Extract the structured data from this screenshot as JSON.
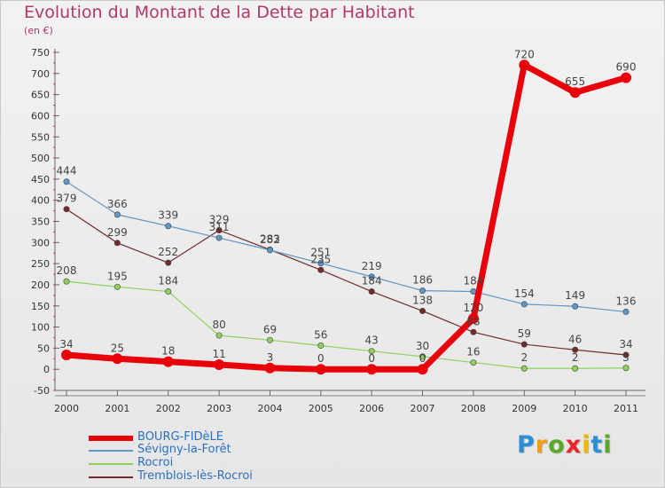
{
  "title": "Evolution du Montant de la Dette par Habitant",
  "subtitle": "(en €)",
  "logo": {
    "letters": [
      "P",
      "r",
      "o",
      "x",
      "i",
      "t",
      "i"
    ],
    "colors": [
      "#2a8fd4",
      "#f39c12",
      "#5aa82a",
      "#e8262c",
      "#f3b500",
      "#2a8fd4",
      "#5aa82a"
    ]
  },
  "chart_data": {
    "type": "line",
    "categories": [
      "2000",
      "2001",
      "2002",
      "2003",
      "2004",
      "2005",
      "2006",
      "2007",
      "2008",
      "2009",
      "2010",
      "2011"
    ],
    "ylim": [
      -50,
      750
    ],
    "yticks": [
      -50,
      0,
      50,
      100,
      150,
      200,
      250,
      300,
      350,
      400,
      450,
      500,
      550,
      600,
      650,
      700,
      750
    ],
    "grid": false,
    "legend_position": "bottom-left",
    "series": [
      {
        "name": "BOURG-FIDèLE",
        "color": "#e8000b",
        "values": [
          34,
          25,
          18,
          11,
          3,
          0,
          0,
          0,
          120,
          720,
          655,
          690
        ],
        "labels": [
          "34",
          "25",
          "18",
          "11",
          "3",
          "0",
          "0",
          "0",
          "120",
          "720",
          "655",
          "690"
        ]
      },
      {
        "name": "Sévigny-la-Forêt",
        "color": "#5f97c8",
        "values": [
          444,
          366,
          339,
          311,
          282,
          251,
          219,
          186,
          184,
          154,
          149,
          136
        ],
        "labels": [
          "444",
          "366",
          "339",
          "311",
          "282",
          "251",
          "219",
          "186",
          "184",
          "154",
          "149",
          "136"
        ]
      },
      {
        "name": "Rocroi",
        "color": "#8fd15a",
        "values": [
          208,
          195,
          184,
          80,
          69,
          56,
          43,
          30,
          16,
          2,
          2,
          3
        ],
        "labels": [
          "208",
          "195",
          "184",
          "80",
          "69",
          "56",
          "43",
          "30",
          "16",
          "2",
          "2",
          "3"
        ]
      },
      {
        "name": "Tremblois-lès-Rocroi",
        "color": "#722a2a",
        "values": [
          379,
          299,
          252,
          329,
          283,
          235,
          184,
          138,
          88,
          59,
          46,
          34
        ],
        "labels": [
          "379",
          "299",
          "252",
          "329",
          "283",
          "235",
          "184",
          "138",
          "88",
          "59",
          "46",
          "34"
        ]
      }
    ]
  }
}
